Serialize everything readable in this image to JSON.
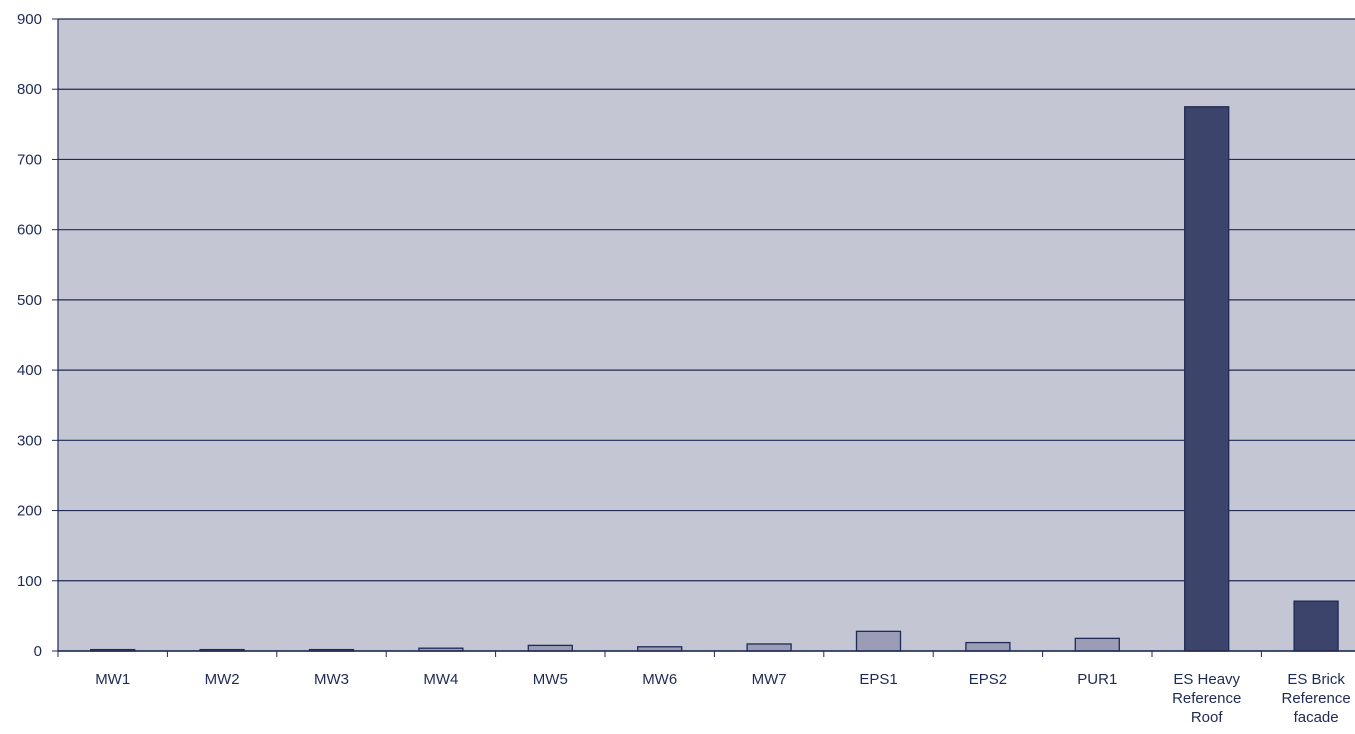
{
  "chart_data": {
    "type": "bar",
    "title": "",
    "xlabel": "",
    "ylabel": "",
    "ylim": [
      0,
      900
    ],
    "yticks": [
      0,
      100,
      200,
      300,
      400,
      500,
      600,
      700,
      800,
      900
    ],
    "grid": true,
    "categories": [
      [
        "MW1"
      ],
      [
        "MW2"
      ],
      [
        "MW3"
      ],
      [
        "MW4"
      ],
      [
        "MW5"
      ],
      [
        "MW6"
      ],
      [
        "MW7"
      ],
      [
        "EPS1"
      ],
      [
        "EPS2"
      ],
      [
        "PUR1"
      ],
      [
        "ES Heavy",
        "Reference",
        "Roof"
      ],
      [
        "ES Brick",
        "Reference",
        "facade"
      ]
    ],
    "values": [
      2,
      2,
      2,
      4,
      8,
      6,
      10,
      28,
      12,
      18,
      775,
      71
    ],
    "colors": {
      "plot_background": "#c4c6d4",
      "gridline": "#1f2a55",
      "bar_fill": "#9a9db5",
      "bar_highlight": "#3d446b",
      "bar_stroke": "#1f2a55"
    },
    "highlight_categories": [
      10,
      11
    ]
  }
}
